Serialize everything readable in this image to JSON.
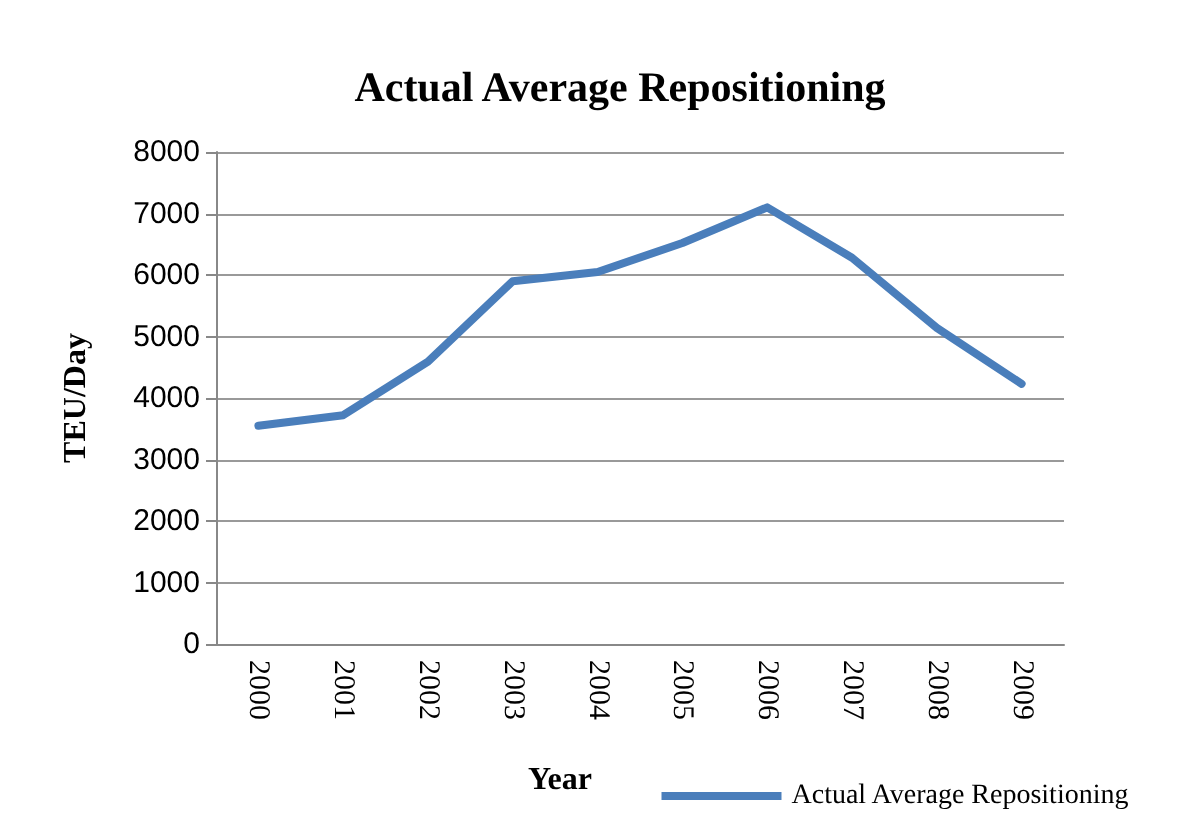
{
  "chart_data": {
    "type": "line",
    "title": "Actual Average Repositioning",
    "xlabel": "Year",
    "ylabel": "TEU/Day",
    "categories": [
      "2000",
      "2001",
      "2002",
      "2003",
      "2004",
      "2005",
      "2006",
      "2007",
      "2008",
      "2009"
    ],
    "series": [
      {
        "name": "Actual Average Repositioning",
        "color": "#4a7ebb",
        "values": [
          3550,
          3720,
          4590,
          5900,
          6050,
          6520,
          7100,
          6280,
          5140,
          4230
        ]
      }
    ],
    "ylim": [
      0,
      8000
    ],
    "yticks": [
      0,
      1000,
      2000,
      3000,
      4000,
      5000,
      6000,
      7000,
      8000
    ],
    "grid": "y",
    "legend": "bottom right",
    "marker": "none",
    "line_style": "solid"
  }
}
